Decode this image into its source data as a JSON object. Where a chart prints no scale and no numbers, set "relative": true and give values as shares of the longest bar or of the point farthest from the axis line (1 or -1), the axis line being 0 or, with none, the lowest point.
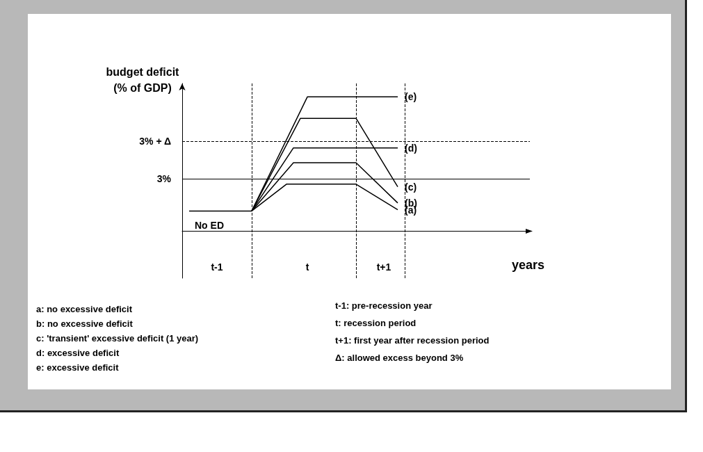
{
  "chart_data": {
    "type": "line",
    "relative": true,
    "ylabel": "budget deficit (% of GDP)",
    "xlabel": "years",
    "categories": [
      null,
      null,
      null,
      null,
      null,
      null,
      null,
      null,
      null,
      null,
      null,
      null,
      null,
      null,
      null,
      null,
      null,
      null,
      null,
      null,
      null,
      null,
      null,
      null,
      null,
      null,
      null,
      null,
      null,
      null,
      null,
      null,
      null,
      null,
      null,
      null,
      null,
      null,
      null,
      null,
      null,
      null,
      null,
      null,
      null,
      null,
      null,
      null,
      null,
      null,
      null
    ],
    "series": [
      {
        "color": "#000000",
        "values": [
          null,
          0.15,
          0.15,
          0.15,
          0.15,
          0.15,
          0.15,
          0.15,
          0.15,
          0.15,
          0.15,
          null,
          null,
          null,
          null,
          null,
          null,
          null,
          null,
          null,
          null,
          null,
          null,
          null,
          null,
          null,
          null,
          null,
          null,
          null,
          null,
          null,
          null,
          null,
          null,
          null,
          null,
          null,
          null,
          null,
          null,
          null,
          null,
          null,
          null,
          null,
          null,
          null,
          null,
          null,
          null
        ]
      },
      {
        "name": "(a)",
        "color": "#000000",
        "values": [
          null,
          null,
          null,
          null,
          null,
          null,
          null,
          null,
          null,
          null,
          0.15,
          null,
          null,
          null,
          null,
          0.35,
          null,
          null,
          null,
          null,
          null,
          null,
          null,
          null,
          null,
          0.35,
          null,
          null,
          null,
          null,
          null,
          0.16,
          null,
          null,
          null,
          null,
          null,
          null,
          null,
          null,
          null,
          null,
          null,
          null,
          null,
          null,
          null,
          null,
          null,
          null,
          null
        ]
      },
      {
        "name": "(b)",
        "color": "#000000",
        "values": [
          null,
          null,
          null,
          null,
          null,
          null,
          null,
          null,
          null,
          null,
          0.15,
          null,
          null,
          null,
          null,
          null,
          0.51,
          null,
          null,
          null,
          null,
          null,
          null,
          null,
          null,
          0.51,
          null,
          null,
          null,
          null,
          null,
          0.21,
          null,
          null,
          null,
          null,
          null,
          null,
          null,
          null,
          null,
          null,
          null,
          null,
          null,
          null,
          null,
          null,
          null,
          null,
          null
        ]
      },
      {
        "name": "(c)",
        "color": "#000000",
        "values": [
          null,
          null,
          null,
          null,
          null,
          null,
          null,
          null,
          null,
          null,
          0.15,
          null,
          null,
          null,
          null,
          null,
          null,
          0.84,
          null,
          null,
          null,
          null,
          null,
          null,
          null,
          0.84,
          null,
          null,
          null,
          null,
          null,
          0.33,
          null,
          null,
          null,
          null,
          null,
          null,
          null,
          null,
          null,
          null,
          null,
          null,
          null,
          null,
          null,
          null,
          null,
          null,
          null
        ]
      },
      {
        "name": "(d)",
        "color": "#000000",
        "values": [
          null,
          null,
          null,
          null,
          null,
          null,
          null,
          null,
          null,
          null,
          0.15,
          null,
          null,
          null,
          null,
          null,
          0.62,
          null,
          null,
          null,
          null,
          null,
          null,
          null,
          null,
          null,
          null,
          null,
          null,
          null,
          null,
          0.62,
          null,
          null,
          null,
          null,
          null,
          null,
          null,
          null,
          null,
          null,
          null,
          null,
          null,
          null,
          null,
          null,
          null,
          null,
          null
        ]
      },
      {
        "name": "(e)",
        "color": "#000000",
        "values": [
          null,
          null,
          null,
          null,
          null,
          null,
          null,
          null,
          null,
          null,
          0.15,
          null,
          null,
          null,
          null,
          null,
          null,
          null,
          1,
          null,
          null,
          null,
          null,
          null,
          null,
          null,
          null,
          null,
          null,
          null,
          null,
          1,
          null,
          null,
          null,
          null,
          null,
          null,
          null,
          null,
          null,
          null,
          null,
          null,
          null,
          null,
          null,
          null,
          null,
          null,
          null
        ]
      }
    ],
    "legend": "right",
    "ref_lines": [
      {
        "axis": "y",
        "value": 0.39,
        "color": "#000000",
        "line_style": "solid"
      },
      {
        "axis": "y",
        "value": 0.67,
        "color": "#000000",
        "line_style": "dashed"
      }
    ],
    "annotations": [
      "3%",
      "3% + Δ",
      "No ED",
      "t-1",
      "t",
      "t+1",
      "a: no excessive deficit",
      "b: no excessive deficit",
      "c: 'transient' excessive deficit (1 year)",
      "d: excessive deficit",
      "e: excessive deficit",
      "t-1: pre-recession year",
      "t: recession period",
      "t+1: first year after recession period",
      "Δ: allowed excess beyond 3%"
    ]
  }
}
